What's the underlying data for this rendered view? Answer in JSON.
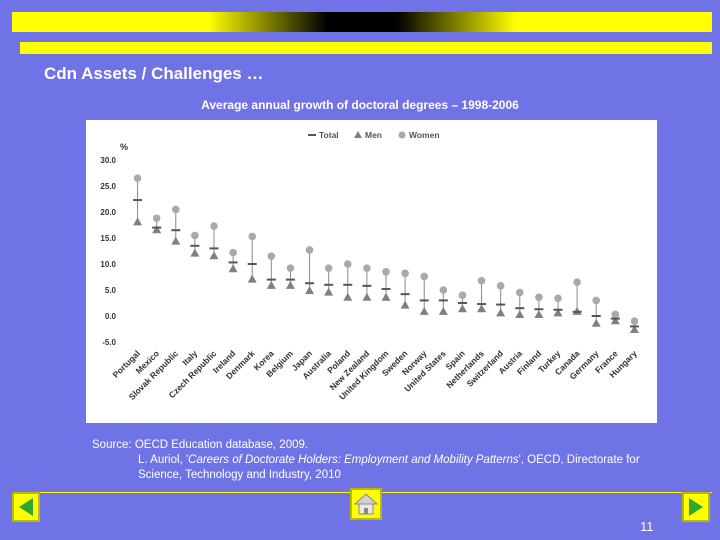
{
  "slide": {
    "title": "Cdn Assets / Challenges …",
    "page_number": "11"
  },
  "chart_title": "Average annual growth of doctoral degrees – 1998-2006",
  "source": {
    "line1": "Source: OECD Education database, 2009.",
    "line2_prefix": "L. Auriol, '",
    "line2_italic": "Careers of Doctorate Holders: Employment and Mobility Patterns",
    "line2_suffix": "', OECD, Directorate for",
    "line3": "Science, Technology and Industry, 2010"
  },
  "colors": {
    "background": "#6f73e6",
    "accent": "#ffff00",
    "series_total": "#555555",
    "series_men": "#808080",
    "series_women": "#a9a9a9"
  },
  "nav": {
    "prev_icon": "arrow-left-icon",
    "home_icon": "home-icon",
    "next_icon": "arrow-right-icon"
  },
  "chart_data": {
    "type": "scatter",
    "title": "Average annual growth of doctoral degrees – 1998-2006",
    "ylabel": "%",
    "ylim": [
      -5,
      30
    ],
    "yticks": [
      "30.0",
      "25.0",
      "20.0",
      "15.0",
      "10.0",
      "5.0",
      "0.0",
      "-5.0"
    ],
    "legend": {
      "position": "top",
      "entries": [
        "Total",
        "Men",
        "Women"
      ]
    },
    "categories": [
      "Portugal",
      "Mexico",
      "Slovak Republic",
      "Italy",
      "Czech Republic",
      "Ireland",
      "Denmark",
      "Korea",
      "Belgium",
      "Japan",
      "Australia",
      "Poland",
      "New Zealand",
      "United Kingdom",
      "Sweden",
      "Norway",
      "United States",
      "Spain",
      "Netherlands",
      "Switzerland",
      "Austria",
      "Finland",
      "Turkey",
      "Canada",
      "Germany",
      "France",
      "Hungary"
    ],
    "series": [
      {
        "name": "Total",
        "marker": "dash",
        "values": [
          22.3,
          17.0,
          16.5,
          13.5,
          13.0,
          10.3,
          10.0,
          7.0,
          7.0,
          6.3,
          6.0,
          6.0,
          5.8,
          5.2,
          4.2,
          3.0,
          3.0,
          2.5,
          2.3,
          2.2,
          1.5,
          1.3,
          1.2,
          0.8,
          0.0,
          -0.5,
          -2.0
        ]
      },
      {
        "name": "Men",
        "marker": "triangle",
        "values": [
          18.0,
          16.5,
          14.3,
          12.0,
          11.5,
          9.0,
          7.0,
          5.8,
          5.8,
          4.8,
          4.5,
          3.5,
          3.5,
          3.5,
          2.0,
          0.8,
          0.8,
          1.3,
          1.3,
          0.5,
          0.2,
          0.2,
          0.5,
          0.8,
          -1.5,
          -1.0,
          -2.7
        ]
      },
      {
        "name": "Women",
        "marker": "circle",
        "values": [
          26.5,
          18.8,
          20.5,
          15.5,
          17.3,
          12.2,
          15.3,
          11.5,
          9.2,
          12.7,
          9.2,
          10.0,
          9.2,
          8.5,
          8.2,
          7.6,
          5.0,
          4.0,
          6.8,
          5.8,
          4.5,
          3.6,
          3.4,
          6.5,
          3.0,
          0.3,
          -1.0
        ]
      }
    ],
    "grid": false
  }
}
